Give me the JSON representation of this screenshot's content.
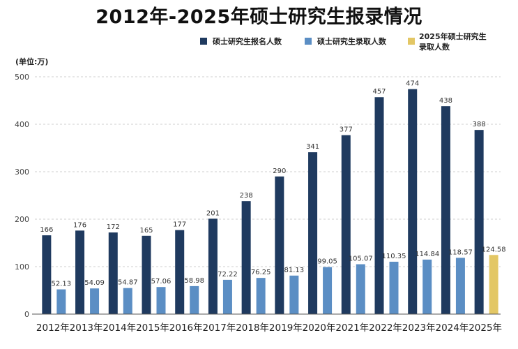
{
  "chart_data": {
    "type": "bar",
    "title": "2012年-2025年硕士研究生报录情况",
    "unit_label": "(单位:万)",
    "categories": [
      "2012年",
      "2013年",
      "2014年",
      "2015年",
      "2016年",
      "2017年",
      "2018年",
      "2019年",
      "2020年",
      "2021年",
      "2022年",
      "2023年",
      "2024年",
      "2025年"
    ],
    "series": [
      {
        "name": "硕士研究生报名人数",
        "color": "#1f3a5f",
        "values": [
          166,
          176,
          172,
          165,
          177,
          201,
          238,
          290,
          341,
          377,
          457,
          474,
          438,
          388
        ],
        "labels": [
          "166",
          "176",
          "172",
          "165",
          "177",
          "201",
          "238",
          "290",
          "341",
          "377",
          "457",
          "474",
          "438",
          "388"
        ]
      },
      {
        "name": "硕士研究生录取人数",
        "color": "#5b8ec4",
        "values": [
          52.13,
          54.09,
          54.87,
          57.06,
          58.98,
          72.22,
          76.25,
          81.13,
          99.05,
          105.07,
          110.35,
          114.84,
          118.57,
          null
        ],
        "labels": [
          "52.13",
          "54.09",
          "54.87",
          "57.06",
          "58.98",
          "72.22",
          "76.25",
          "81.13",
          "99.05",
          "105.07",
          "110.35",
          "114.84",
          "118.57",
          ""
        ]
      },
      {
        "name": "2025年硕士研究生录取人数",
        "color": "#e3c765",
        "values": [
          null,
          null,
          null,
          null,
          null,
          null,
          null,
          null,
          null,
          null,
          null,
          null,
          null,
          124.58
        ],
        "labels": [
          "",
          "",
          "",
          "",
          "",
          "",
          "",
          "",
          "",
          "",
          "",
          "",
          "",
          "124.58"
        ]
      }
    ],
    "yticks": [
      "0",
      "100",
      "200",
      "300",
      "400",
      "500"
    ],
    "ylim": [
      0,
      500
    ],
    "grid": "horizontal-dashed",
    "legend_position": "top-right"
  }
}
